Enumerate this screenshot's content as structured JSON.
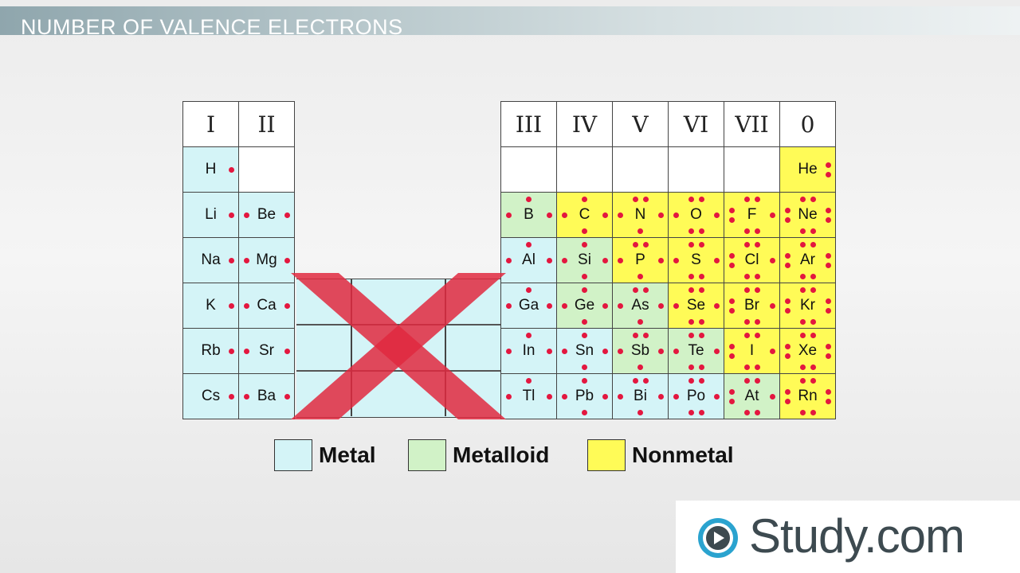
{
  "header": {
    "title": "NUMBER OF VALENCE ELECTRONS"
  },
  "colors": {
    "metal": "#d4f4f7",
    "metalloid": "#d1f2c7",
    "nonmetal": "#fffb57",
    "dot": "#e3173f",
    "x_mark": "#e0293f"
  },
  "left_groups": [
    "I",
    "II"
  ],
  "right_groups": [
    "III",
    "IV",
    "V",
    "VI",
    "VII",
    "0"
  ],
  "left_rows": [
    [
      {
        "symbol": "H",
        "type": "metal",
        "electrons": 1
      },
      {
        "symbol": "",
        "type": "blank",
        "electrons": 0
      }
    ],
    [
      {
        "symbol": "Li",
        "type": "metal",
        "electrons": 1
      },
      {
        "symbol": "Be",
        "type": "metal",
        "electrons": 2
      }
    ],
    [
      {
        "symbol": "Na",
        "type": "metal",
        "electrons": 1
      },
      {
        "symbol": "Mg",
        "type": "metal",
        "electrons": 2
      }
    ],
    [
      {
        "symbol": "K",
        "type": "metal",
        "electrons": 1
      },
      {
        "symbol": "Ca",
        "type": "metal",
        "electrons": 2
      }
    ],
    [
      {
        "symbol": "Rb",
        "type": "metal",
        "electrons": 1
      },
      {
        "symbol": "Sr",
        "type": "metal",
        "electrons": 2
      }
    ],
    [
      {
        "symbol": "Cs",
        "type": "metal",
        "electrons": 1
      },
      {
        "symbol": "Ba",
        "type": "metal",
        "electrons": 2
      }
    ]
  ],
  "right_rows": [
    [
      {
        "symbol": "",
        "type": "blank",
        "electrons": 0
      },
      {
        "symbol": "",
        "type": "blank",
        "electrons": 0
      },
      {
        "symbol": "",
        "type": "blank",
        "electrons": 0
      },
      {
        "symbol": "",
        "type": "blank",
        "electrons": 0
      },
      {
        "symbol": "",
        "type": "blank",
        "electrons": 0
      },
      {
        "symbol": "He",
        "type": "nonmetal",
        "electrons": 2
      }
    ],
    [
      {
        "symbol": "B",
        "type": "metalloid",
        "electrons": 3
      },
      {
        "symbol": "C",
        "type": "nonmetal",
        "electrons": 4
      },
      {
        "symbol": "N",
        "type": "nonmetal",
        "electrons": 5
      },
      {
        "symbol": "O",
        "type": "nonmetal",
        "electrons": 6
      },
      {
        "symbol": "F",
        "type": "nonmetal",
        "electrons": 7
      },
      {
        "symbol": "Ne",
        "type": "nonmetal",
        "electrons": 8
      }
    ],
    [
      {
        "symbol": "Al",
        "type": "metal",
        "electrons": 3
      },
      {
        "symbol": "Si",
        "type": "metalloid",
        "electrons": 4
      },
      {
        "symbol": "P",
        "type": "nonmetal",
        "electrons": 5
      },
      {
        "symbol": "S",
        "type": "nonmetal",
        "electrons": 6
      },
      {
        "symbol": "Cl",
        "type": "nonmetal",
        "electrons": 7
      },
      {
        "symbol": "Ar",
        "type": "nonmetal",
        "electrons": 8
      }
    ],
    [
      {
        "symbol": "Ga",
        "type": "metal",
        "electrons": 3
      },
      {
        "symbol": "Ge",
        "type": "metalloid",
        "electrons": 4
      },
      {
        "symbol": "As",
        "type": "metalloid",
        "electrons": 5
      },
      {
        "symbol": "Se",
        "type": "nonmetal",
        "electrons": 6
      },
      {
        "symbol": "Br",
        "type": "nonmetal",
        "electrons": 7
      },
      {
        "symbol": "Kr",
        "type": "nonmetal",
        "electrons": 8
      }
    ],
    [
      {
        "symbol": "In",
        "type": "metal",
        "electrons": 3
      },
      {
        "symbol": "Sn",
        "type": "metal",
        "electrons": 4
      },
      {
        "symbol": "Sb",
        "type": "metalloid",
        "electrons": 5
      },
      {
        "symbol": "Te",
        "type": "metalloid",
        "electrons": 6
      },
      {
        "symbol": "I",
        "type": "nonmetal",
        "electrons": 7
      },
      {
        "symbol": "Xe",
        "type": "nonmetal",
        "electrons": 8
      }
    ],
    [
      {
        "symbol": "Tl",
        "type": "metal",
        "electrons": 3
      },
      {
        "symbol": "Pb",
        "type": "metal",
        "electrons": 4
      },
      {
        "symbol": "Bi",
        "type": "metal",
        "electrons": 5
      },
      {
        "symbol": "Po",
        "type": "metal",
        "electrons": 6
      },
      {
        "symbol": "At",
        "type": "metalloid",
        "electrons": 7
      },
      {
        "symbol": "Rn",
        "type": "nonmetal",
        "electrons": 8
      }
    ]
  ],
  "legend": {
    "metal": "Metal",
    "metalloid": "Metalloid",
    "nonmetal": "Nonmetal"
  },
  "logo": {
    "text": "Study.com",
    "icon": "play-icon"
  }
}
